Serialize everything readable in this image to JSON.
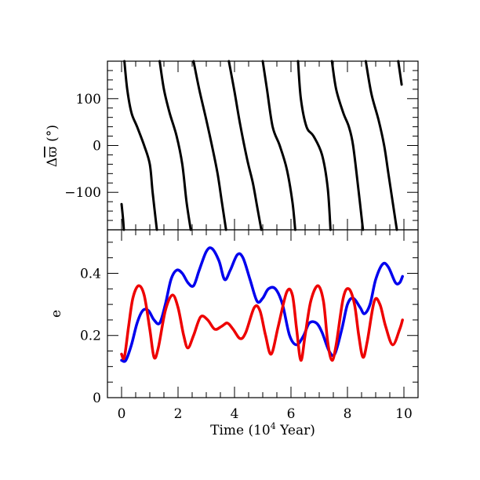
{
  "chart_data": [
    {
      "type": "line",
      "panel": "top",
      "ylabel": "Δϖ̄ (°)",
      "ylabel_parts": {
        "delta": "Δ",
        "varpi": "ϖ",
        "unit": "(°)"
      },
      "xlim": [
        -0.5,
        10.5
      ],
      "ylim": [
        -180,
        180
      ],
      "yticks": [
        -100,
        0,
        100
      ],
      "ytick_labels": [
        "−100",
        "0",
        "100"
      ],
      "x_tick_labels_shown": false,
      "grid": false,
      "legend": "none",
      "series": [
        {
          "color": "#000000",
          "wraps_at": [
            -180,
            180
          ],
          "points": [
            [
              0.0,
              -125
            ],
            [
              0.05,
              -155
            ],
            [
              0.08,
              -180
            ],
            [
              0.1,
              180
            ],
            [
              0.2,
              120
            ],
            [
              0.35,
              70
            ],
            [
              0.55,
              40
            ],
            [
              0.8,
              0
            ],
            [
              1.0,
              -40
            ],
            [
              1.1,
              -100
            ],
            [
              1.25,
              -180
            ],
            [
              1.35,
              180
            ],
            [
              1.5,
              120
            ],
            [
              1.7,
              70
            ],
            [
              1.95,
              20
            ],
            [
              2.15,
              -40
            ],
            [
              2.3,
              -120
            ],
            [
              2.45,
              -180
            ],
            [
              2.55,
              180
            ],
            [
              2.75,
              120
            ],
            [
              3.0,
              55
            ],
            [
              3.2,
              0
            ],
            [
              3.4,
              -60
            ],
            [
              3.55,
              -120
            ],
            [
              3.7,
              -180
            ],
            [
              3.8,
              180
            ],
            [
              4.0,
              115
            ],
            [
              4.2,
              45
            ],
            [
              4.45,
              -30
            ],
            [
              4.65,
              -80
            ],
            [
              4.8,
              -130
            ],
            [
              4.95,
              -180
            ],
            [
              5.0,
              180
            ],
            [
              5.15,
              120
            ],
            [
              5.35,
              40
            ],
            [
              5.6,
              0
            ],
            [
              5.85,
              -50
            ],
            [
              6.05,
              -120
            ],
            [
              6.15,
              -180
            ],
            [
              6.25,
              180
            ],
            [
              6.35,
              100
            ],
            [
              6.55,
              40
            ],
            [
              6.8,
              20
            ],
            [
              7.1,
              -20
            ],
            [
              7.3,
              -90
            ],
            [
              7.4,
              -180
            ],
            [
              7.45,
              180
            ],
            [
              7.6,
              120
            ],
            [
              7.85,
              70
            ],
            [
              8.05,
              40
            ],
            [
              8.2,
              0
            ],
            [
              8.4,
              -100
            ],
            [
              8.55,
              -180
            ],
            [
              8.65,
              180
            ],
            [
              8.85,
              110
            ],
            [
              9.1,
              55
            ],
            [
              9.3,
              0
            ],
            [
              9.45,
              -60
            ],
            [
              9.6,
              -120
            ],
            [
              9.75,
              -180
            ],
            [
              9.8,
              180
            ],
            [
              9.92,
              130
            ]
          ]
        }
      ]
    },
    {
      "type": "line",
      "panel": "bottom",
      "xlabel": "Time (10⁴ Year)",
      "xlabel_parts": {
        "pre": "Time (10",
        "sup": "4",
        "post": " Year)"
      },
      "ylabel": "e",
      "xlim": [
        -0.5,
        10.5
      ],
      "ylim": [
        0,
        0.54
      ],
      "xticks": [
        0,
        2,
        4,
        6,
        8,
        10
      ],
      "xtick_labels": [
        "0",
        "2",
        "4",
        "6",
        "8",
        "10"
      ],
      "yticks": [
        0,
        0.2,
        0.4
      ],
      "ytick_labels": [
        "0",
        "0.2",
        "0.4"
      ],
      "grid": false,
      "legend": "none",
      "series": [
        {
          "color": "#0000ee",
          "points": [
            [
              0.0,
              0.12
            ],
            [
              0.15,
              0.12
            ],
            [
              0.35,
              0.17
            ],
            [
              0.55,
              0.24
            ],
            [
              0.75,
              0.28
            ],
            [
              0.95,
              0.28
            ],
            [
              1.15,
              0.25
            ],
            [
              1.35,
              0.24
            ],
            [
              1.55,
              0.3
            ],
            [
              1.75,
              0.38
            ],
            [
              1.95,
              0.41
            ],
            [
              2.15,
              0.4
            ],
            [
              2.35,
              0.37
            ],
            [
              2.55,
              0.36
            ],
            [
              2.75,
              0.41
            ],
            [
              3.0,
              0.47
            ],
            [
              3.2,
              0.48
            ],
            [
              3.45,
              0.44
            ],
            [
              3.65,
              0.38
            ],
            [
              3.85,
              0.41
            ],
            [
              4.1,
              0.46
            ],
            [
              4.3,
              0.45
            ],
            [
              4.55,
              0.38
            ],
            [
              4.8,
              0.31
            ],
            [
              5.0,
              0.32
            ],
            [
              5.2,
              0.35
            ],
            [
              5.45,
              0.35
            ],
            [
              5.7,
              0.3
            ],
            [
              5.95,
              0.2
            ],
            [
              6.2,
              0.17
            ],
            [
              6.45,
              0.2
            ],
            [
              6.65,
              0.24
            ],
            [
              6.9,
              0.24
            ],
            [
              7.1,
              0.21
            ],
            [
              7.35,
              0.15
            ],
            [
              7.55,
              0.14
            ],
            [
              7.8,
              0.22
            ],
            [
              8.0,
              0.3
            ],
            [
              8.2,
              0.32
            ],
            [
              8.45,
              0.29
            ],
            [
              8.6,
              0.27
            ],
            [
              8.8,
              0.3
            ],
            [
              9.0,
              0.38
            ],
            [
              9.25,
              0.43
            ],
            [
              9.45,
              0.42
            ],
            [
              9.7,
              0.37
            ],
            [
              9.85,
              0.37
            ],
            [
              9.95,
              0.39
            ]
          ]
        },
        {
          "color": "#ee0000",
          "points": [
            [
              0.0,
              0.14
            ],
            [
              0.1,
              0.13
            ],
            [
              0.25,
              0.23
            ],
            [
              0.4,
              0.32
            ],
            [
              0.6,
              0.36
            ],
            [
              0.8,
              0.33
            ],
            [
              1.0,
              0.22
            ],
            [
              1.15,
              0.13
            ],
            [
              1.3,
              0.16
            ],
            [
              1.55,
              0.28
            ],
            [
              1.8,
              0.33
            ],
            [
              2.0,
              0.29
            ],
            [
              2.2,
              0.2
            ],
            [
              2.35,
              0.16
            ],
            [
              2.55,
              0.2
            ],
            [
              2.8,
              0.26
            ],
            [
              3.05,
              0.25
            ],
            [
              3.3,
              0.22
            ],
            [
              3.55,
              0.23
            ],
            [
              3.75,
              0.24
            ],
            [
              3.95,
              0.22
            ],
            [
              4.2,
              0.19
            ],
            [
              4.4,
              0.21
            ],
            [
              4.7,
              0.29
            ],
            [
              4.9,
              0.28
            ],
            [
              5.1,
              0.2
            ],
            [
              5.3,
              0.14
            ],
            [
              5.55,
              0.23
            ],
            [
              5.85,
              0.34
            ],
            [
              6.05,
              0.33
            ],
            [
              6.2,
              0.22
            ],
            [
              6.35,
              0.12
            ],
            [
              6.5,
              0.2
            ],
            [
              6.7,
              0.31
            ],
            [
              6.95,
              0.36
            ],
            [
              7.15,
              0.31
            ],
            [
              7.3,
              0.18
            ],
            [
              7.45,
              0.12
            ],
            [
              7.6,
              0.17
            ],
            [
              7.85,
              0.32
            ],
            [
              8.05,
              0.35
            ],
            [
              8.25,
              0.3
            ],
            [
              8.4,
              0.2
            ],
            [
              8.55,
              0.13
            ],
            [
              8.7,
              0.18
            ],
            [
              8.95,
              0.31
            ],
            [
              9.15,
              0.3
            ],
            [
              9.35,
              0.23
            ],
            [
              9.6,
              0.17
            ],
            [
              9.85,
              0.22
            ],
            [
              9.95,
              0.25
            ]
          ]
        }
      ]
    }
  ]
}
